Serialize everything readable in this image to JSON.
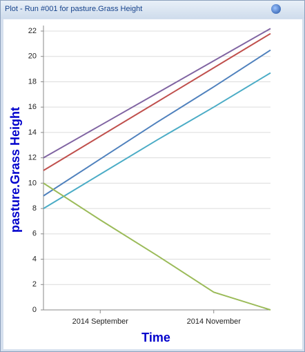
{
  "window": {
    "title": "Plot - Run #001 for pasture.Grass Height"
  },
  "chart_data": {
    "type": "line",
    "x_label": "Time",
    "y_label": "pasture.Grass Height",
    "x": [
      "2014-08",
      "2014-09",
      "2014-10",
      "2014-11",
      "2014-12"
    ],
    "xlim": [
      "2014-08",
      "2014-12"
    ],
    "xticks": [
      {
        "value": "2014-09",
        "label": "2014 September"
      },
      {
        "value": "2014-11",
        "label": "2014 November"
      }
    ],
    "ylim": [
      0,
      22
    ],
    "yticks": [
      0,
      2,
      4,
      6,
      8,
      10,
      12,
      14,
      16,
      18,
      20,
      22
    ],
    "grid": true,
    "series": [
      {
        "color": "#8064a2",
        "values": [
          12,
          14.55,
          17.1,
          19.65,
          22.2
        ]
      },
      {
        "color": "#c0504d",
        "values": [
          11,
          13.7,
          16.4,
          19.1,
          21.8
        ]
      },
      {
        "color": "#4f81bd",
        "values": [
          9,
          11.9,
          14.8,
          17.6,
          20.5
        ]
      },
      {
        "color": "#4bacc6",
        "values": [
          8,
          10.7,
          13.4,
          16,
          18.7
        ]
      },
      {
        "color": "#9bbb59",
        "values": [
          10,
          7.1,
          4.3,
          1.4,
          0
        ]
      }
    ]
  }
}
